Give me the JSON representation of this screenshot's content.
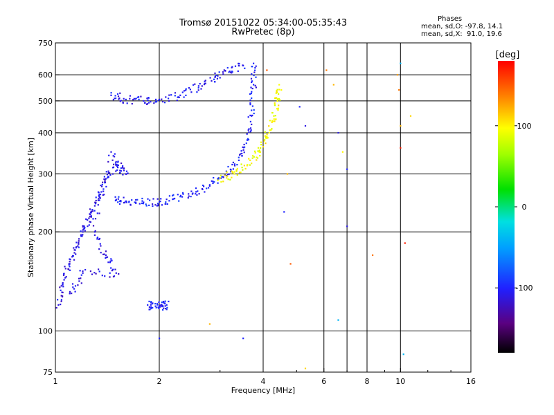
{
  "title_line1": "Tromsø 20151022 05:34:00-05:35:43",
  "title_line2": "RwPretec (8p)",
  "stats": {
    "heading": "Phases",
    "o_line": "mean, sd,O: -97.8, 14.1",
    "x_line": "mean, sd,X:  91.0, 19.6"
  },
  "chart_data": {
    "type": "scatter",
    "xlabel": "Frequency [MHz]",
    "ylabel": "Stationary phase Virtual Height [km]",
    "x_scale": "log",
    "y_scale": "log",
    "xlim": [
      1,
      16
    ],
    "ylim": [
      75,
      750
    ],
    "x_ticks": [
      1,
      2,
      4,
      6,
      8,
      10,
      16
    ],
    "x_tick_labels": [
      "1",
      "2",
      "4",
      "6",
      "8",
      "10",
      "16"
    ],
    "x_grid": [
      2,
      4,
      6,
      7,
      8,
      10
    ],
    "y_ticks": [
      75,
      100,
      200,
      300,
      400,
      500,
      600,
      750
    ],
    "y_tick_labels": [
      "75",
      "100",
      "200",
      "300",
      "400",
      "500",
      "600",
      "750"
    ],
    "y_grid": [
      100,
      200,
      300,
      400,
      500,
      600
    ],
    "colorbar": {
      "label": "[deg]",
      "range": [
        -180,
        180
      ],
      "ticks": [
        100,
        0,
        -100
      ],
      "tick_labels": [
        "100",
        "0",
        "-100"
      ]
    },
    "traces": [
      {
        "desc": "O-mode low layer trace",
        "phase": -100,
        "points": [
          [
            1.5,
            250
          ],
          [
            1.6,
            248
          ],
          [
            1.8,
            246
          ],
          [
            2.0,
            247
          ],
          [
            2.2,
            252
          ],
          [
            2.5,
            262
          ],
          [
            2.8,
            278
          ],
          [
            3.1,
            298
          ],
          [
            3.4,
            330
          ],
          [
            3.6,
            380
          ],
          [
            3.7,
            450
          ],
          [
            3.75,
            560
          ],
          [
            3.75,
            650
          ]
        ]
      },
      {
        "desc": "O-mode upper F trace",
        "phase": -105,
        "points": [
          [
            1.45,
            520
          ],
          [
            1.6,
            505
          ],
          [
            1.8,
            500
          ],
          [
            2.0,
            505
          ],
          [
            2.3,
            520
          ],
          [
            2.6,
            555
          ],
          [
            2.9,
            590
          ],
          [
            3.2,
            615
          ],
          [
            3.5,
            640
          ]
        ]
      },
      {
        "desc": "X-mode trace",
        "phase": 95,
        "points": [
          [
            3.0,
            292
          ],
          [
            3.3,
            300
          ],
          [
            3.6,
            320
          ],
          [
            3.9,
            350
          ],
          [
            4.1,
            390
          ],
          [
            4.3,
            440
          ],
          [
            4.4,
            500
          ],
          [
            4.45,
            560
          ]
        ]
      },
      {
        "desc": "low frequency spread",
        "phase": -110,
        "points": [
          [
            1.02,
            120
          ],
          [
            1.05,
            140
          ],
          [
            1.1,
            160
          ],
          [
            1.15,
            180
          ],
          [
            1.2,
            200
          ],
          [
            1.25,
            220
          ],
          [
            1.3,
            240
          ],
          [
            1.35,
            260
          ],
          [
            1.4,
            290
          ],
          [
            1.5,
            320
          ],
          [
            1.6,
            300
          ],
          [
            1.45,
            350
          ],
          [
            1.3,
            200
          ],
          [
            1.4,
            170
          ],
          [
            1.5,
            150
          ],
          [
            1.2,
            150
          ],
          [
            1.1,
            130
          ]
        ]
      },
      {
        "desc": "isolated patch near 2 MHz",
        "phase": -100,
        "points": [
          [
            1.85,
            120
          ],
          [
            1.95,
            119
          ],
          [
            2.05,
            119
          ],
          [
            2.1,
            120
          ]
        ]
      }
    ],
    "scattered_points": [
      {
        "f": 6.1,
        "h": 620,
        "phase": 140
      },
      {
        "f": 6.4,
        "h": 560,
        "phase": 120
      },
      {
        "f": 6.6,
        "h": 400,
        "phase": -110
      },
      {
        "f": 6.8,
        "h": 350,
        "phase": 100
      },
      {
        "f": 7.0,
        "h": 310,
        "phase": -100
      },
      {
        "f": 6.6,
        "h": 108,
        "phase": -40
      },
      {
        "f": 7.0,
        "h": 208,
        "phase": -110
      },
      {
        "f": 9.8,
        "h": 600,
        "phase": 130
      },
      {
        "f": 9.9,
        "h": 540,
        "phase": 140
      },
      {
        "f": 10.0,
        "h": 420,
        "phase": 120
      },
      {
        "f": 10.0,
        "h": 360,
        "phase": 170
      },
      {
        "f": 10.7,
        "h": 450,
        "phase": 110
      },
      {
        "f": 10.3,
        "h": 185,
        "phase": 170
      },
      {
        "f": 10.0,
        "h": 650,
        "phase": -40
      },
      {
        "f": 10.2,
        "h": 85,
        "phase": -40
      },
      {
        "f": 8.3,
        "h": 170,
        "phase": 140
      },
      {
        "f": 5.1,
        "h": 480,
        "phase": -100
      },
      {
        "f": 5.3,
        "h": 420,
        "phase": -110
      },
      {
        "f": 4.6,
        "h": 230,
        "phase": -100
      },
      {
        "f": 5.3,
        "h": 77,
        "phase": 110
      },
      {
        "f": 3.5,
        "h": 95,
        "phase": -100
      },
      {
        "f": 2.8,
        "h": 105,
        "phase": 120
      },
      {
        "f": 2.0,
        "h": 95,
        "phase": -100
      },
      {
        "f": 4.1,
        "h": 620,
        "phase": 150
      },
      {
        "f": 4.7,
        "h": 300,
        "phase": 120
      },
      {
        "f": 4.8,
        "h": 160,
        "phase": 150
      }
    ]
  }
}
